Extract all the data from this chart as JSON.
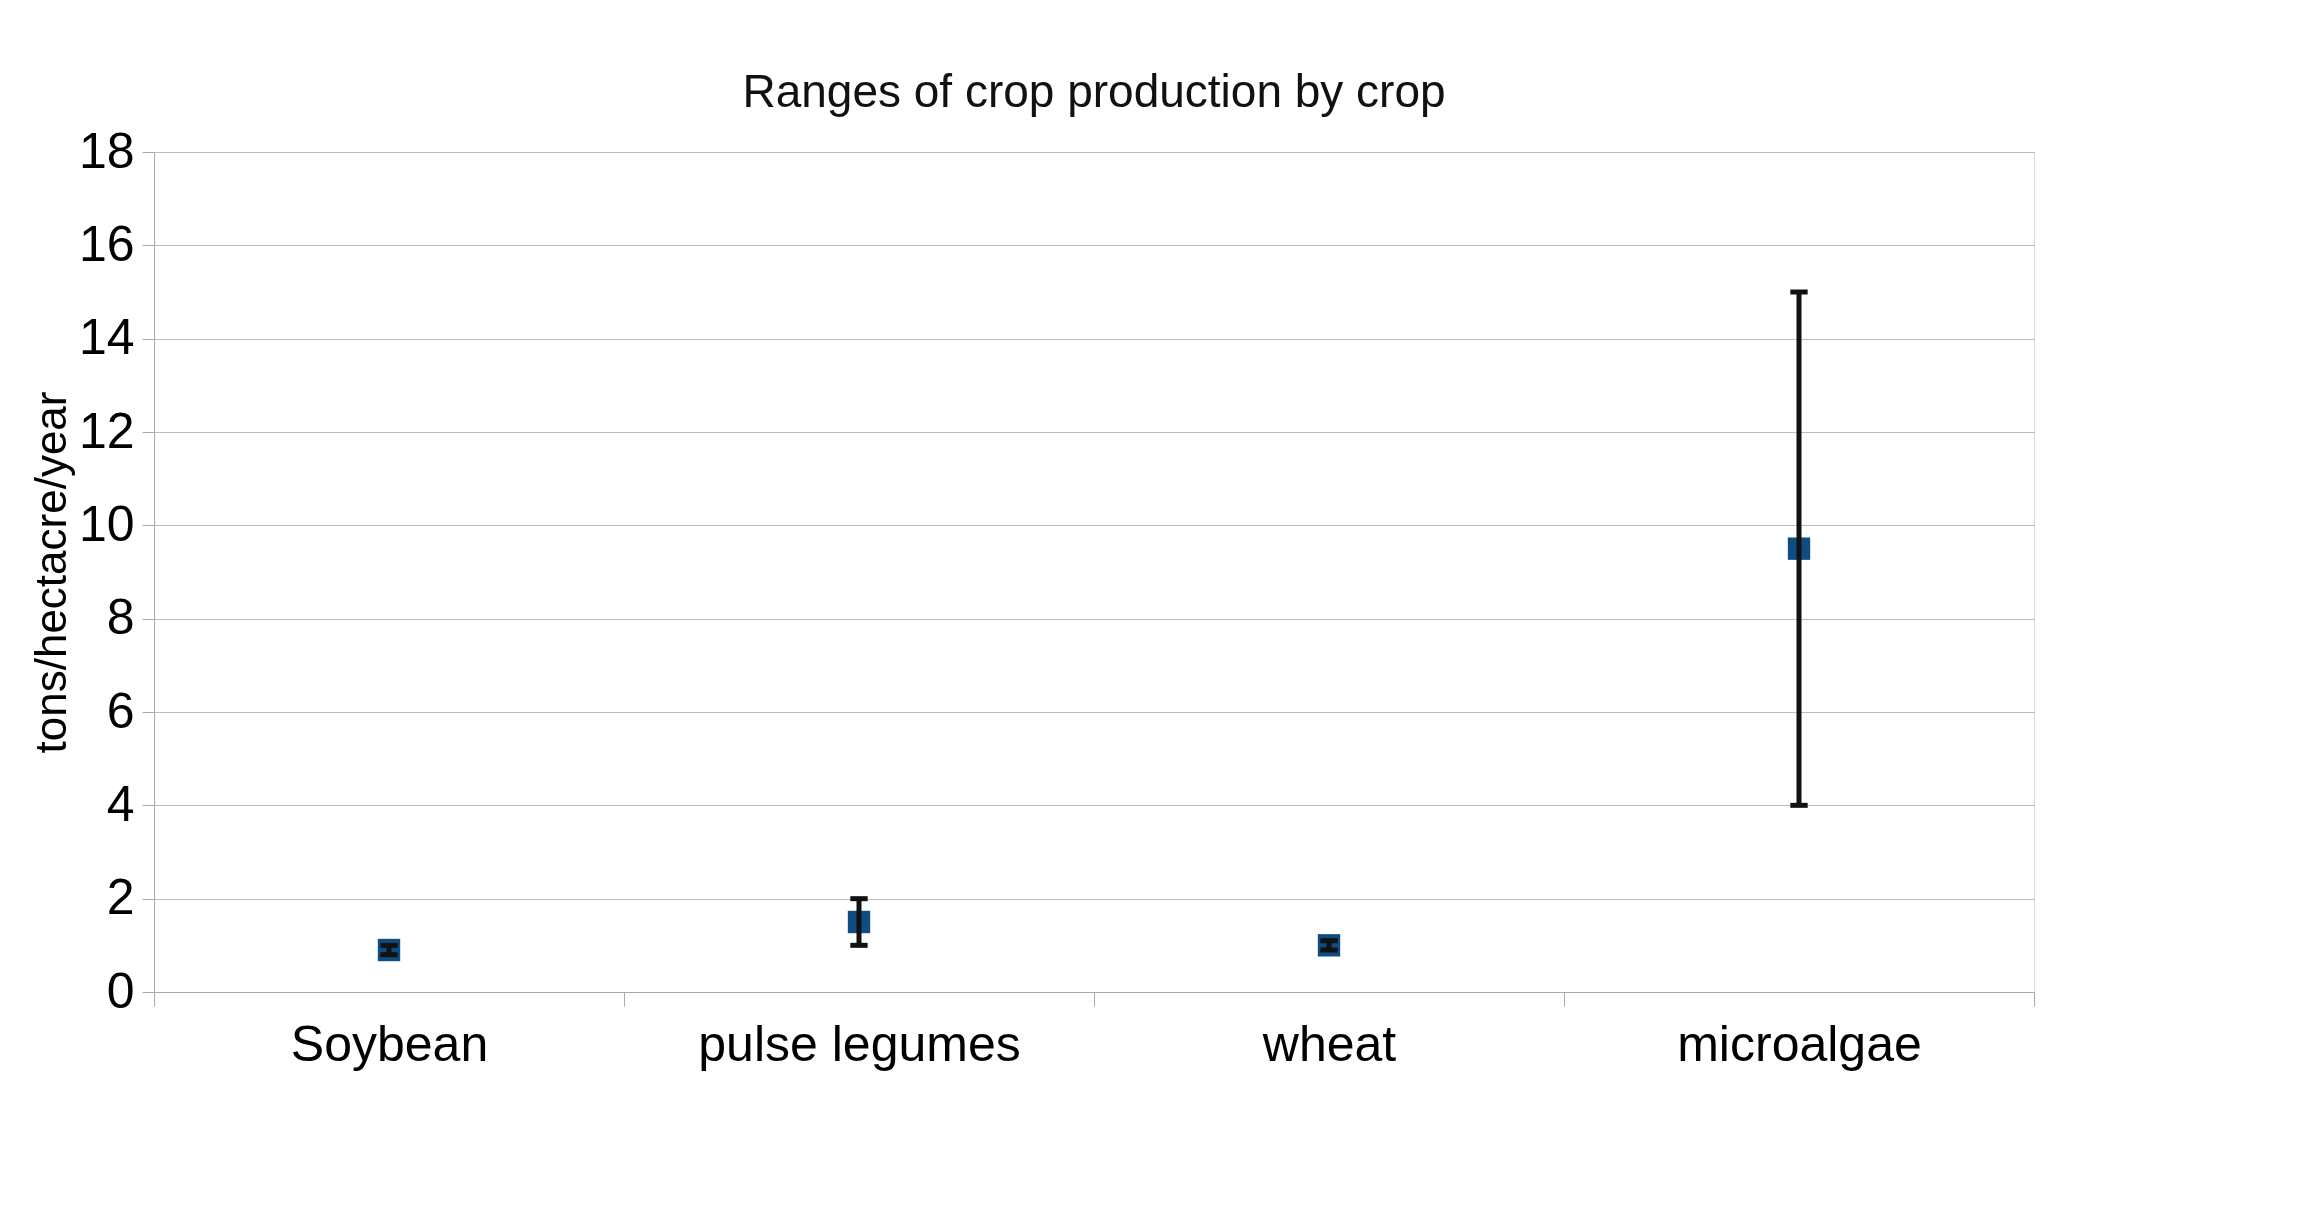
{
  "chart_data": {
    "type": "scatter",
    "title": "Ranges of crop production by crop",
    "ylabel": "tons/hectacre/year",
    "categories": [
      "Soybean",
      "pulse legumes",
      "wheat",
      "microalgae"
    ],
    "series": [
      {
        "color": "#0f4c81",
        "values": [
          0.9,
          1.5,
          1.0,
          9.5
        ],
        "errors": [
          [
            0.8,
            1.0
          ],
          [
            1,
            2
          ],
          [
            0.9,
            1.1
          ],
          [
            4,
            15
          ]
        ]
      }
    ],
    "ylim": [
      0,
      18
    ],
    "yticks": [
      0,
      2,
      4,
      6,
      8,
      10,
      12,
      14,
      16,
      18
    ],
    "grid": "y",
    "marker": "square",
    "legend": false
  }
}
